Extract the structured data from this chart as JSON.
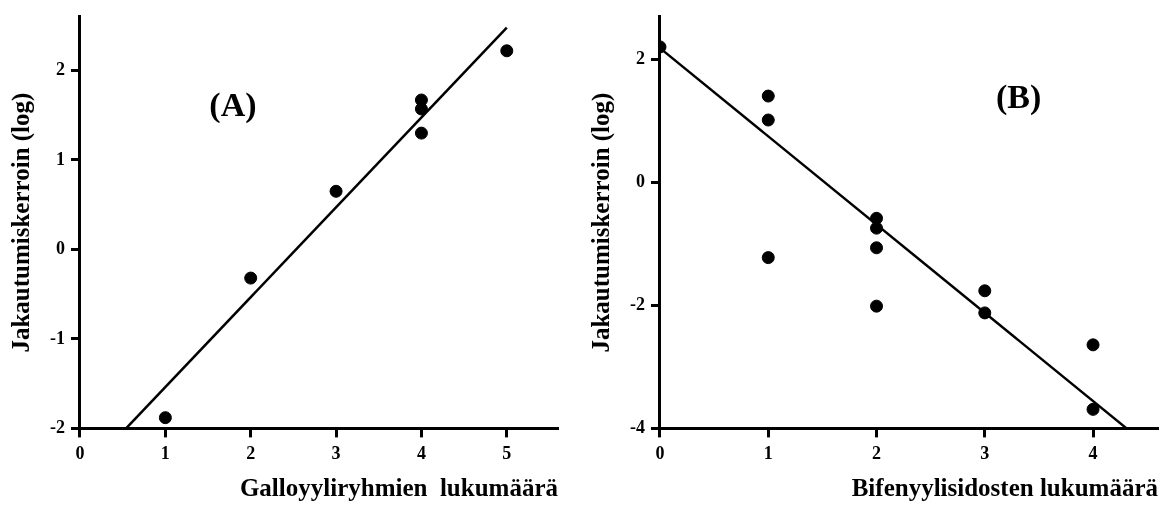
{
  "chart_data": [
    {
      "type": "scatter",
      "xlabel": "Galloyyliryhmien  lukumäärä",
      "ylabel": "Jakautumiskerroin (log)",
      "annotations": [
        "(A)"
      ],
      "xlim": [
        0,
        5.6
      ],
      "xticks": [
        0,
        1,
        2,
        3,
        4,
        5
      ],
      "ylim": [
        -2,
        2.6
      ],
      "yticks": [
        -2,
        -1,
        0,
        1,
        2
      ],
      "grid": false,
      "legend": false,
      "series": [
        {
          "type": "scatter",
          "marker": "circle",
          "color": "#000000",
          "x": [
            1,
            2,
            3,
            4,
            4,
            4,
            5
          ],
          "values": [
            -1.88,
            -0.32,
            0.65,
            1.67,
            1.57,
            1.3,
            2.22
          ]
        },
        {
          "type": "line",
          "marker": "none",
          "color": "#000000",
          "line_style": "solid",
          "x": [
            0.54,
            5.0
          ],
          "values": [
            -2,
            2.48
          ]
        }
      ]
    },
    {
      "type": "scatter",
      "xlabel": "Bifenyylisidosten lukumäärä",
      "ylabel": "Jakautumiskerroin (log)",
      "annotations": [
        "(B)"
      ],
      "xlim": [
        0,
        4.6
      ],
      "xticks": [
        0,
        1,
        2,
        3,
        4
      ],
      "ylim": [
        -4,
        2.7
      ],
      "yticks": [
        -4,
        -2,
        0,
        2
      ],
      "grid": false,
      "legend": false,
      "series": [
        {
          "type": "scatter",
          "marker": "circle",
          "color": "#000000",
          "x": [
            0,
            1,
            1,
            1,
            2,
            2,
            2,
            2,
            3,
            3,
            4,
            4
          ],
          "values": [
            2.21,
            1.41,
            1.02,
            -1.22,
            -0.58,
            -0.74,
            -1.06,
            -2.01,
            -1.76,
            -2.12,
            -2.64,
            -3.69
          ]
        },
        {
          "type": "line",
          "marker": "none",
          "color": "#000000",
          "line_style": "solid",
          "x": [
            0,
            4.31
          ],
          "values": [
            2.19,
            -4
          ]
        }
      ]
    }
  ]
}
